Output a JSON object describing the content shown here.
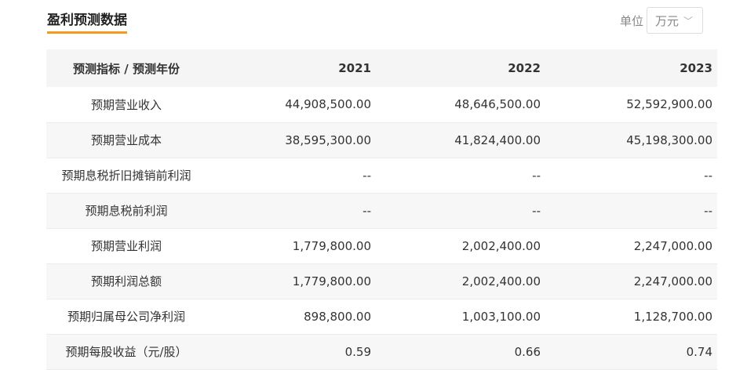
{
  "header": {
    "title": "盈利预测数据",
    "unit_label": "单位",
    "unit_value": "万元"
  },
  "table": {
    "columns": [
      "预测指标 / 预测年份",
      "2021",
      "2022",
      "2023"
    ],
    "rows": [
      {
        "label": "预期营业收入",
        "values": [
          "44,908,500.00",
          "48,646,500.00",
          "52,592,900.00"
        ]
      },
      {
        "label": "预期营业成本",
        "values": [
          "38,595,300.00",
          "41,824,400.00",
          "45,198,300.00"
        ]
      },
      {
        "label": "预期息税折旧摊销前利润",
        "values": [
          "--",
          "--",
          "--"
        ]
      },
      {
        "label": "预期息税前利润",
        "values": [
          "--",
          "--",
          "--"
        ]
      },
      {
        "label": "预期营业利润",
        "values": [
          "1,779,800.00",
          "2,002,400.00",
          "2,247,000.00"
        ]
      },
      {
        "label": "预期利润总额",
        "values": [
          "1,779,800.00",
          "2,002,400.00",
          "2,247,000.00"
        ]
      },
      {
        "label": "预期归属母公司净利润",
        "values": [
          "898,800.00",
          "1,003,100.00",
          "1,128,700.00"
        ]
      },
      {
        "label": "预期每股收益（元/股）",
        "values": [
          "0.59",
          "0.66",
          "0.74"
        ]
      }
    ]
  }
}
